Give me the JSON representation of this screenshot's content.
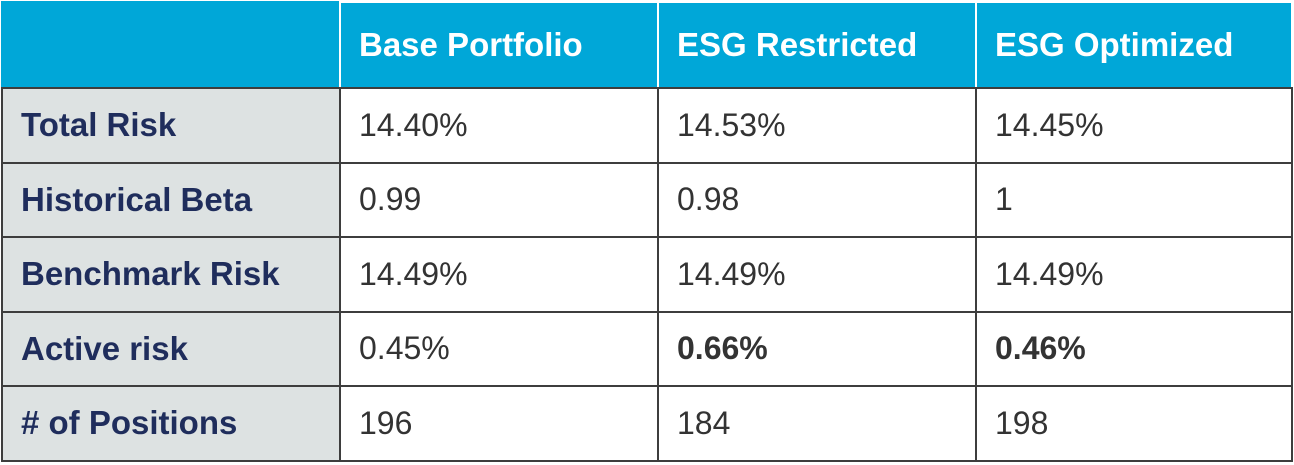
{
  "table": {
    "headers": [
      "",
      "Base Portfolio",
      "ESG Restricted",
      "ESG Optimized"
    ],
    "rows": [
      {
        "label": "Total Risk",
        "cells": [
          "14.40%",
          "14.53%",
          "14.45%"
        ],
        "bold": [
          false,
          false,
          false
        ]
      },
      {
        "label": "Historical Beta",
        "cells": [
          "0.99",
          "0.98",
          "1"
        ],
        "bold": [
          false,
          false,
          false
        ]
      },
      {
        "label": "Benchmark Risk",
        "cells": [
          "14.49%",
          "14.49%",
          "14.49%"
        ],
        "bold": [
          false,
          false,
          false
        ]
      },
      {
        "label": "Active risk",
        "cells": [
          "0.45%",
          "0.66%",
          "0.46%"
        ],
        "bold": [
          false,
          true,
          true
        ]
      },
      {
        "label": "# of Positions",
        "cells": [
          "196",
          "184",
          "198"
        ],
        "bold": [
          false,
          false,
          false
        ]
      }
    ]
  },
  "colors": {
    "header_bg": "#00a7d8",
    "header_text": "#ffffff",
    "label_bg": "#dde2e2",
    "label_text": "#1f2d5c",
    "cell_text": "#333333",
    "border": "#3d3d3d"
  }
}
